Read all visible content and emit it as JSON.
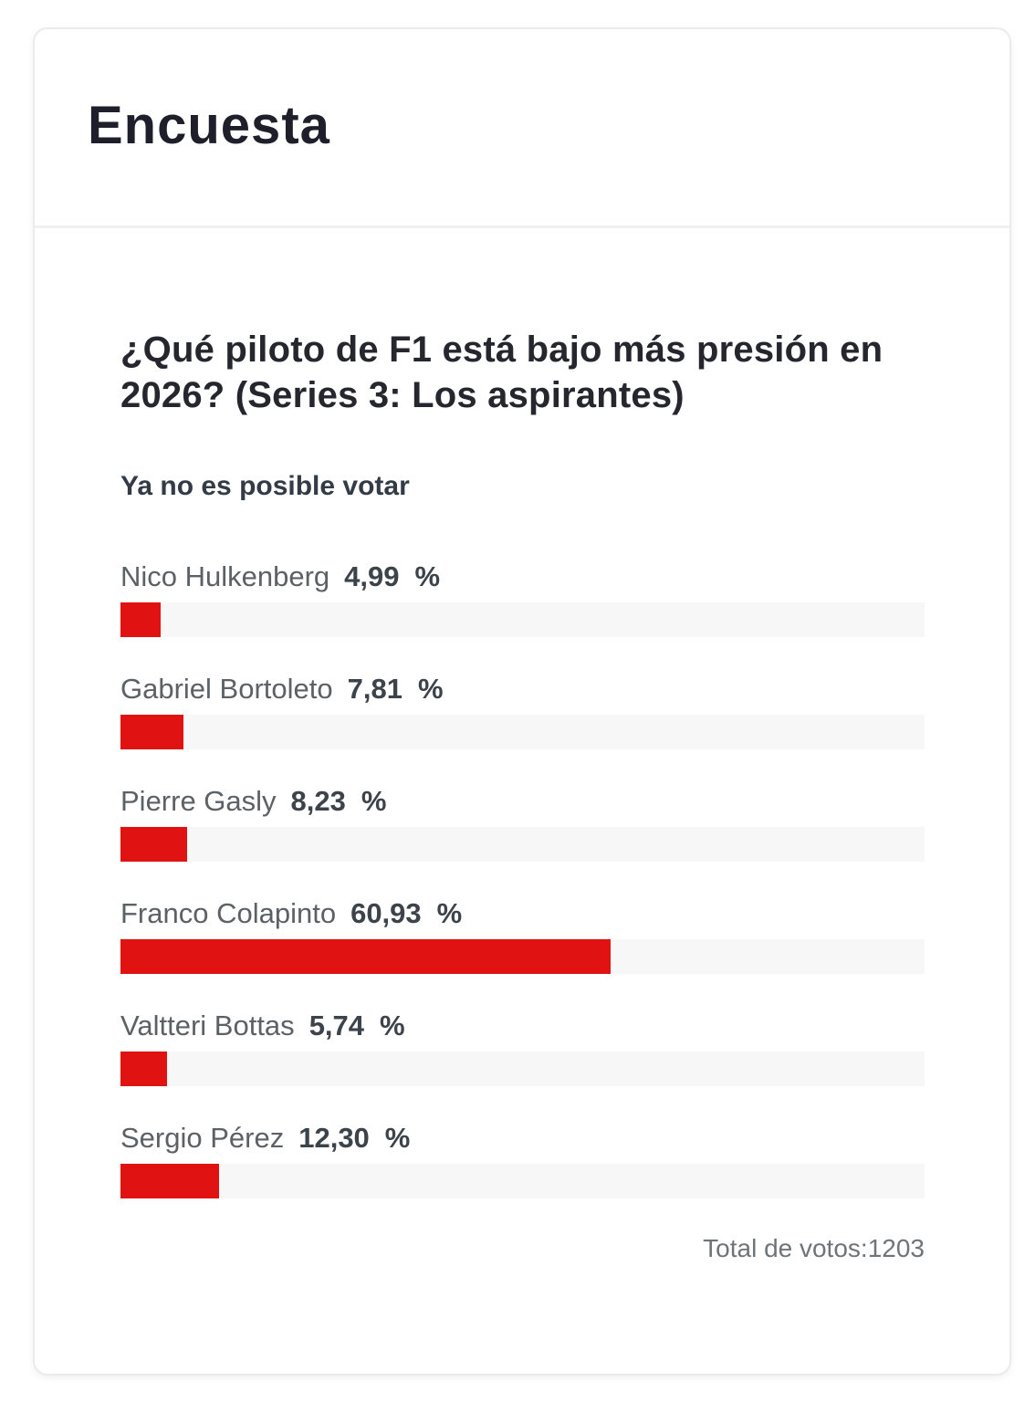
{
  "card": {
    "title": "Encuesta"
  },
  "poll": {
    "question": "¿Qué piloto de F1 está bajo más presión en 2026? (Series 3: Los aspirantes)",
    "status": "Ya no es posible votar",
    "percent_symbol": "%",
    "options": [
      {
        "name": "Nico Hulkenberg",
        "value": "4,99",
        "percent": 4.99
      },
      {
        "name": "Gabriel Bortoleto",
        "value": "7,81",
        "percent": 7.81
      },
      {
        "name": "Pierre Gasly",
        "value": "8,23",
        "percent": 8.23
      },
      {
        "name": "Franco Colapinto",
        "value": "60,93",
        "percent": 60.93
      },
      {
        "name": "Valtteri Bottas",
        "value": "5,74",
        "percent": 5.74
      },
      {
        "name": "Sergio Pérez",
        "value": "12,30",
        "percent": 12.3
      }
    ],
    "total_label": "Total de votos:",
    "total_value": "1203"
  },
  "colors": {
    "bar_fill": "#e01212",
    "bar_track": "#f7f7f7",
    "title_text": "#1f1f2c",
    "name_text": "#5c6166",
    "value_text": "#3d434a"
  },
  "chart_data": {
    "type": "bar",
    "orientation": "horizontal",
    "title": "¿Qué piloto de F1 está bajo más presión en 2026? (Series 3: Los aspirantes)",
    "categories": [
      "Nico Hulkenberg",
      "Gabriel Bortoleto",
      "Pierre Gasly",
      "Franco Colapinto",
      "Valtteri Bottas",
      "Sergio Pérez"
    ],
    "values": [
      4.99,
      7.81,
      8.23,
      60.93,
      5.74,
      12.3
    ],
    "value_unit": "%",
    "xlim": [
      0,
      100
    ],
    "grid": false,
    "legend": false,
    "annotation": "Total de votos:1203"
  }
}
